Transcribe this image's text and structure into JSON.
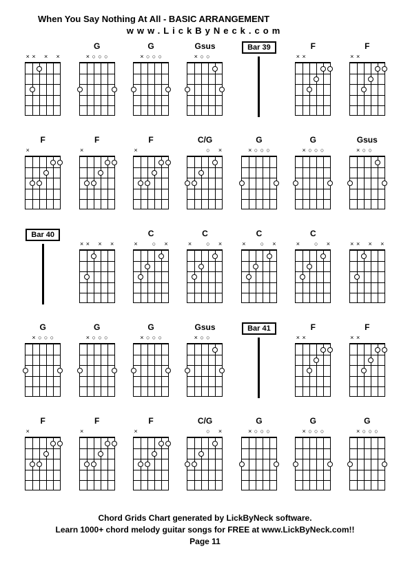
{
  "title": "When You Say Nothing At All - BASIC ARRANGEMENT",
  "subtitle": "www.LickByNeck.com",
  "footer_line1": "Chord Grids Chart generated by LickByNeck software.",
  "footer_line2": "Learn 1000+ chord melody guitar songs for FREE at www.LickByNeck.com!!",
  "page_label": "Page 11",
  "colors": {
    "background": "#ffffff",
    "line": "#000000",
    "text": "#000000"
  },
  "layout": {
    "cols": 7,
    "rows": 5,
    "diagram_width": 58,
    "diagram_height": 90,
    "frets": 5,
    "strings": 6
  },
  "cells": [
    {
      "type": "chord",
      "label": "",
      "markers": [
        "x",
        "x",
        "",
        "x",
        "",
        "x"
      ],
      "dots": [
        [
          1,
          3
        ],
        [
          3,
          4
        ]
      ],
      "dash": "both"
    },
    {
      "type": "chord",
      "label": "G",
      "markers": [
        "",
        "x",
        "o",
        "o",
        "o",
        ""
      ],
      "dots": [
        [
          3,
          5
        ],
        [
          3,
          0
        ]
      ]
    },
    {
      "type": "chord",
      "label": "G",
      "markers": [
        "",
        "x",
        "o",
        "o",
        "o",
        ""
      ],
      "dots": [
        [
          3,
          5
        ],
        [
          3,
          0
        ]
      ]
    },
    {
      "type": "chord",
      "label": "Gsus",
      "markers": [
        "",
        "x",
        "o",
        "o",
        "",
        ""
      ],
      "dots": [
        [
          3,
          5
        ],
        [
          1,
          1
        ],
        [
          3,
          0
        ]
      ]
    },
    {
      "type": "bar",
      "label": "Bar 39"
    },
    {
      "type": "chord",
      "label": "F",
      "markers": [
        "x",
        "x",
        "",
        "",
        "",
        ""
      ],
      "dots": [
        [
          3,
          3
        ],
        [
          2,
          2
        ],
        [
          1,
          1
        ],
        [
          1,
          0
        ]
      ]
    },
    {
      "type": "chord",
      "label": "F",
      "markers": [
        "x",
        "x",
        "",
        "",
        "",
        ""
      ],
      "dots": [
        [
          3,
          3
        ],
        [
          2,
          2
        ],
        [
          1,
          1
        ],
        [
          1,
          0
        ]
      ]
    },
    {
      "type": "chord",
      "label": "F",
      "markers": [
        "x",
        "",
        "",
        "",
        "",
        ""
      ],
      "dots": [
        [
          3,
          4
        ],
        [
          3,
          3
        ],
        [
          2,
          2
        ],
        [
          1,
          1
        ],
        [
          1,
          0
        ]
      ],
      "dash": "left"
    },
    {
      "type": "chord",
      "label": "F",
      "markers": [
        "x",
        "",
        "",
        "",
        "",
        ""
      ],
      "dots": [
        [
          3,
          4
        ],
        [
          3,
          3
        ],
        [
          2,
          2
        ],
        [
          1,
          1
        ],
        [
          1,
          0
        ]
      ]
    },
    {
      "type": "chord",
      "label": "F",
      "markers": [
        "x",
        "",
        "",
        "",
        "",
        ""
      ],
      "dots": [
        [
          3,
          4
        ],
        [
          3,
          3
        ],
        [
          2,
          2
        ],
        [
          1,
          1
        ],
        [
          1,
          0
        ]
      ]
    },
    {
      "type": "chord",
      "label": "C/G",
      "markers": [
        "",
        "",
        "",
        "o",
        "",
        "x"
      ],
      "dots": [
        [
          3,
          5
        ],
        [
          3,
          4
        ],
        [
          2,
          3
        ],
        [
          1,
          1
        ]
      ]
    },
    {
      "type": "chord",
      "label": "G",
      "markers": [
        "",
        "x",
        "o",
        "o",
        "o",
        ""
      ],
      "dots": [
        [
          3,
          5
        ],
        [
          3,
          0
        ]
      ]
    },
    {
      "type": "chord",
      "label": "G",
      "markers": [
        "",
        "x",
        "o",
        "o",
        "o",
        ""
      ],
      "dots": [
        [
          3,
          5
        ],
        [
          3,
          0
        ]
      ]
    },
    {
      "type": "chord",
      "label": "Gsus",
      "markers": [
        "",
        "x",
        "o",
        "o",
        "",
        ""
      ],
      "dots": [
        [
          3,
          5
        ],
        [
          1,
          1
        ],
        [
          3,
          0
        ]
      ],
      "dash": "right"
    },
    {
      "type": "bar",
      "label": "Bar 40"
    },
    {
      "type": "chord",
      "label": "",
      "markers": [
        "x",
        "x",
        "",
        "x",
        "",
        "x"
      ],
      "dots": [
        [
          1,
          3
        ],
        [
          3,
          4
        ]
      ]
    },
    {
      "type": "chord",
      "label": "C",
      "markers": [
        "x",
        "",
        "",
        "o",
        "",
        "x"
      ],
      "dots": [
        [
          3,
          4
        ],
        [
          2,
          3
        ],
        [
          1,
          1
        ]
      ]
    },
    {
      "type": "chord",
      "label": "C",
      "markers": [
        "x",
        "",
        "",
        "o",
        "",
        "x"
      ],
      "dots": [
        [
          3,
          4
        ],
        [
          2,
          3
        ],
        [
          1,
          1
        ]
      ]
    },
    {
      "type": "chord",
      "label": "C",
      "markers": [
        "x",
        "",
        "",
        "o",
        "",
        "x"
      ],
      "dots": [
        [
          3,
          4
        ],
        [
          2,
          3
        ],
        [
          1,
          1
        ]
      ]
    },
    {
      "type": "chord",
      "label": "C",
      "markers": [
        "x",
        "",
        "",
        "o",
        "",
        "x"
      ],
      "dots": [
        [
          3,
          4
        ],
        [
          2,
          3
        ],
        [
          1,
          1
        ]
      ]
    },
    {
      "type": "chord",
      "label": "",
      "markers": [
        "x",
        "x",
        "",
        "x",
        "",
        "x"
      ],
      "dots": [
        [
          1,
          3
        ],
        [
          3,
          4
        ]
      ]
    },
    {
      "type": "chord",
      "label": "G",
      "markers": [
        "",
        "x",
        "o",
        "o",
        "o",
        ""
      ],
      "dots": [
        [
          3,
          5
        ],
        [
          3,
          0
        ]
      ],
      "dash": "left"
    },
    {
      "type": "chord",
      "label": "G",
      "markers": [
        "",
        "x",
        "o",
        "o",
        "o",
        ""
      ],
      "dots": [
        [
          3,
          5
        ],
        [
          3,
          0
        ]
      ]
    },
    {
      "type": "chord",
      "label": "G",
      "markers": [
        "",
        "x",
        "o",
        "o",
        "o",
        ""
      ],
      "dots": [
        [
          3,
          5
        ],
        [
          3,
          0
        ]
      ]
    },
    {
      "type": "chord",
      "label": "Gsus",
      "markers": [
        "",
        "x",
        "o",
        "o",
        "",
        ""
      ],
      "dots": [
        [
          3,
          5
        ],
        [
          1,
          1
        ],
        [
          3,
          0
        ]
      ]
    },
    {
      "type": "bar",
      "label": "Bar 41"
    },
    {
      "type": "chord",
      "label": "F",
      "markers": [
        "x",
        "x",
        "",
        "",
        "",
        ""
      ],
      "dots": [
        [
          3,
          3
        ],
        [
          2,
          2
        ],
        [
          1,
          1
        ],
        [
          1,
          0
        ]
      ]
    },
    {
      "type": "chord",
      "label": "F",
      "markers": [
        "x",
        "x",
        "",
        "",
        "",
        ""
      ],
      "dots": [
        [
          3,
          3
        ],
        [
          2,
          2
        ],
        [
          1,
          1
        ],
        [
          1,
          0
        ]
      ],
      "dash": "right"
    },
    {
      "type": "chord",
      "label": "F",
      "markers": [
        "x",
        "",
        "",
        "",
        "",
        ""
      ],
      "dots": [
        [
          3,
          4
        ],
        [
          3,
          3
        ],
        [
          2,
          2
        ],
        [
          1,
          1
        ],
        [
          1,
          0
        ]
      ],
      "dash": "left"
    },
    {
      "type": "chord",
      "label": "F",
      "markers": [
        "x",
        "",
        "",
        "",
        "",
        ""
      ],
      "dots": [
        [
          3,
          4
        ],
        [
          3,
          3
        ],
        [
          2,
          2
        ],
        [
          1,
          1
        ],
        [
          1,
          0
        ]
      ]
    },
    {
      "type": "chord",
      "label": "F",
      "markers": [
        "x",
        "",
        "",
        "",
        "",
        ""
      ],
      "dots": [
        [
          3,
          4
        ],
        [
          3,
          3
        ],
        [
          2,
          2
        ],
        [
          1,
          1
        ],
        [
          1,
          0
        ]
      ]
    },
    {
      "type": "chord",
      "label": "C/G",
      "markers": [
        "",
        "",
        "",
        "o",
        "",
        "x"
      ],
      "dots": [
        [
          3,
          5
        ],
        [
          3,
          4
        ],
        [
          2,
          3
        ],
        [
          1,
          1
        ]
      ]
    },
    {
      "type": "chord",
      "label": "G",
      "markers": [
        "",
        "x",
        "o",
        "o",
        "o",
        ""
      ],
      "dots": [
        [
          3,
          5
        ],
        [
          3,
          0
        ]
      ]
    },
    {
      "type": "chord",
      "label": "G",
      "markers": [
        "",
        "x",
        "o",
        "o",
        "o",
        ""
      ],
      "dots": [
        [
          3,
          5
        ],
        [
          3,
          0
        ]
      ]
    },
    {
      "type": "chord",
      "label": "G",
      "markers": [
        "",
        "x",
        "o",
        "o",
        "o",
        ""
      ],
      "dots": [
        [
          3,
          5
        ],
        [
          3,
          0
        ]
      ],
      "dash": "right"
    }
  ]
}
